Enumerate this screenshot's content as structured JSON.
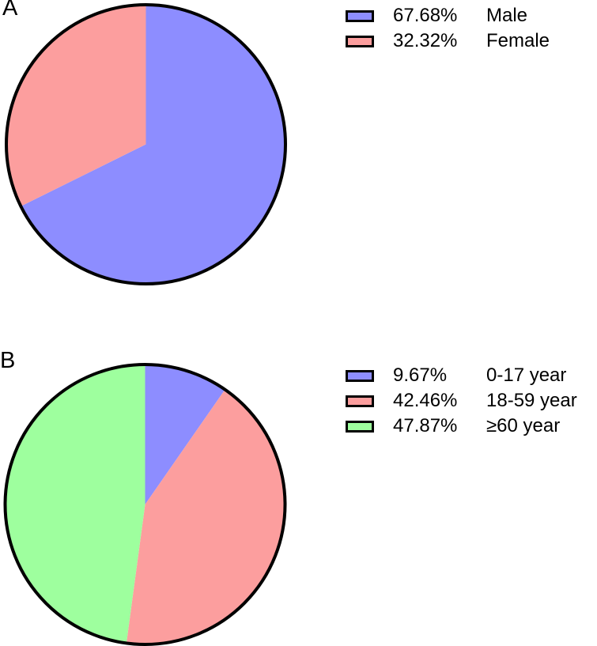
{
  "panels": [
    {
      "label": "A"
    },
    {
      "label": "B"
    }
  ],
  "colors": {
    "blue": "#8D8DFF",
    "pink": "#FC9E9E",
    "green": "#9EFF9E",
    "outline": "#000000"
  },
  "chart_data": [
    {
      "type": "pie",
      "panel": "A",
      "start_angle_deg": 0,
      "direction": "clockwise",
      "legend_position": "top-right",
      "slices": [
        {
          "label": "Male",
          "percent": 67.68,
          "display_percent": "67.68%",
          "color": "#8D8DFF"
        },
        {
          "label": "Female",
          "percent": 32.32,
          "display_percent": "32.32%",
          "color": "#FC9E9E"
        }
      ]
    },
    {
      "type": "pie",
      "panel": "B",
      "start_angle_deg": 0,
      "direction": "clockwise",
      "legend_position": "top-right",
      "slices": [
        {
          "label": "0-17 year",
          "percent": 9.67,
          "display_percent": "9.67%",
          "color": "#8D8DFF"
        },
        {
          "label": "18-59 year",
          "percent": 42.46,
          "display_percent": "42.46%",
          "color": "#FC9E9E"
        },
        {
          "label": "≥60 year",
          "percent": 47.87,
          "display_percent": "47.87%",
          "color": "#9EFF9E"
        }
      ]
    }
  ]
}
